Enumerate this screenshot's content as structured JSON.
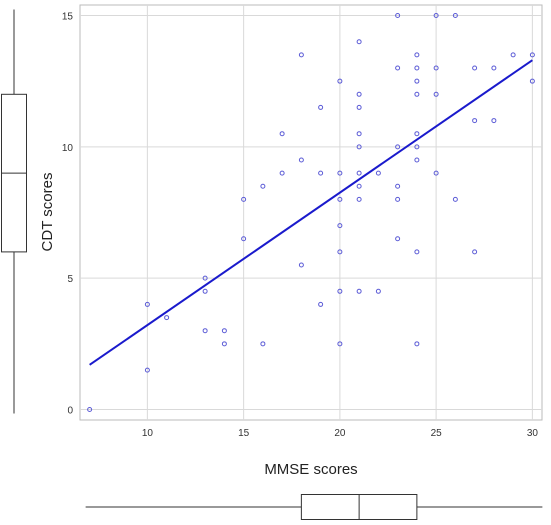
{
  "chart_data": {
    "type": "scatter",
    "title": "",
    "xlabel": "MMSE scores",
    "ylabel": "CDT scores",
    "xlim": [
      6.5,
      30.5
    ],
    "ylim": [
      -0.4,
      15.4
    ],
    "xticks": [
      10,
      15,
      20,
      25,
      30
    ],
    "yticks": [
      0,
      5,
      10,
      15
    ],
    "xtick_labels": [
      "10",
      "15",
      "20",
      "25",
      "30"
    ],
    "ytick_labels": [
      "0",
      "5",
      "10",
      "15"
    ],
    "grid": true,
    "series": [
      {
        "marker": "open-circle",
        "color": "#5b5bd6",
        "points": [
          [
            7,
            0
          ],
          [
            10,
            4
          ],
          [
            10,
            1.5
          ],
          [
            11,
            3.5
          ],
          [
            13,
            5
          ],
          [
            13,
            4.5
          ],
          [
            13,
            3
          ],
          [
            14,
            3
          ],
          [
            14,
            2.5
          ],
          [
            15,
            8
          ],
          [
            15,
            6.5
          ],
          [
            16,
            8.5
          ],
          [
            16,
            2.5
          ],
          [
            17,
            10.5
          ],
          [
            17,
            9
          ],
          [
            18,
            13.5
          ],
          [
            18,
            9.5
          ],
          [
            18,
            5.5
          ],
          [
            19,
            11.5
          ],
          [
            19,
            9
          ],
          [
            19,
            4
          ],
          [
            20,
            12.5
          ],
          [
            20,
            9
          ],
          [
            20,
            8
          ],
          [
            20,
            7
          ],
          [
            20,
            6
          ],
          [
            20,
            4.5
          ],
          [
            20,
            2.5
          ],
          [
            21,
            14
          ],
          [
            21,
            12
          ],
          [
            21,
            11.5
          ],
          [
            21,
            10.5
          ],
          [
            21,
            10
          ],
          [
            21,
            9
          ],
          [
            21,
            8.5
          ],
          [
            21,
            8
          ],
          [
            21,
            4.5
          ],
          [
            22,
            9
          ],
          [
            22,
            4.5
          ],
          [
            23,
            15
          ],
          [
            23,
            13
          ],
          [
            23,
            10
          ],
          [
            23,
            8.5
          ],
          [
            23,
            8
          ],
          [
            23,
            6.5
          ],
          [
            24,
            13.5
          ],
          [
            24,
            13
          ],
          [
            24,
            12.5
          ],
          [
            24,
            12
          ],
          [
            24,
            10.5
          ],
          [
            24,
            10
          ],
          [
            24,
            9.5
          ],
          [
            24,
            6
          ],
          [
            24,
            2.5
          ],
          [
            25,
            15
          ],
          [
            25,
            13
          ],
          [
            25,
            12
          ],
          [
            25,
            9
          ],
          [
            26,
            15
          ],
          [
            26,
            8
          ],
          [
            27,
            13
          ],
          [
            27,
            11
          ],
          [
            27,
            6
          ],
          [
            28,
            13
          ],
          [
            28,
            11
          ],
          [
            29,
            13.5
          ],
          [
            30,
            13.5
          ],
          [
            30,
            12.5
          ]
        ]
      }
    ],
    "fit_line": {
      "color": "#1a1acc",
      "x": [
        7,
        30
      ],
      "y": [
        1.7,
        13.3
      ]
    },
    "marginal_boxplot_x": {
      "whisker_min": 7,
      "q1": 18,
      "median": 21,
      "q3": 24,
      "whisker_max": 30
    },
    "marginal_boxplot_y": {
      "whisker_min": 0,
      "q1": 6,
      "median": 9,
      "q3": 12,
      "whisker_max": 15
    }
  }
}
